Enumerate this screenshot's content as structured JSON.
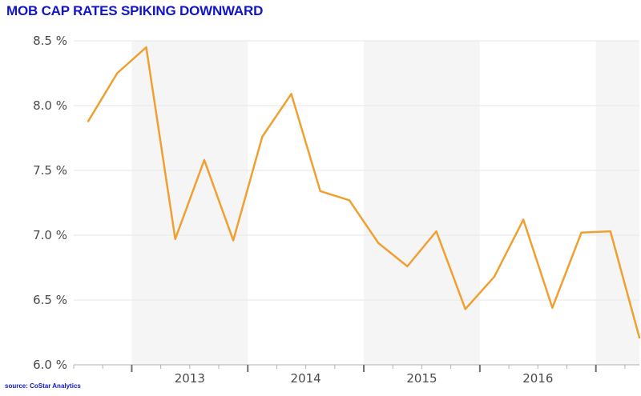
{
  "title": "MOB CAP RATES SPIKING DOWNWARD",
  "source": "source: CoStar Analytics",
  "chart_data": {
    "type": "line",
    "title": "MOB CAP RATES SPIKING DOWNWARD",
    "line_color": "#f0a030",
    "band_color": "#f5f5f5",
    "ylim": [
      6.0,
      8.5
    ],
    "y_ticks": [
      6.0,
      6.5,
      7.0,
      7.5,
      8.0,
      8.5
    ],
    "y_tick_labels": [
      "6.0 %",
      "6.5 %",
      "7.0 %",
      "7.5 %",
      "8.0 %",
      "8.5 %"
    ],
    "y_unit": "%",
    "x_tick_labels": [
      "2013",
      "2014",
      "2015",
      "2016"
    ],
    "x_range_quarters": [
      0,
      19.5
    ],
    "shaded_bands_quarters": [
      [
        2,
        6
      ],
      [
        10,
        14
      ],
      [
        18,
        19.5
      ]
    ],
    "year_boundaries_quarters": [
      2,
      6,
      10,
      14,
      18
    ],
    "year_label_positions_quarters": [
      4,
      8,
      12,
      16
    ],
    "series": [
      {
        "x": [
          0.5,
          1.5,
          2.5,
          3.5,
          4.5,
          5.5,
          6.5,
          7.5,
          8.5,
          9.5,
          10.5,
          11.5,
          12.5,
          13.5,
          14.5,
          15.5,
          16.5,
          17.5,
          18.5,
          19.5
        ],
        "values": [
          7.88,
          8.25,
          8.45,
          6.97,
          7.58,
          6.96,
          7.76,
          8.09,
          7.34,
          7.27,
          6.94,
          6.76,
          7.03,
          6.43,
          6.68,
          7.12,
          6.44,
          7.02,
          7.03,
          6.21
        ]
      }
    ]
  }
}
